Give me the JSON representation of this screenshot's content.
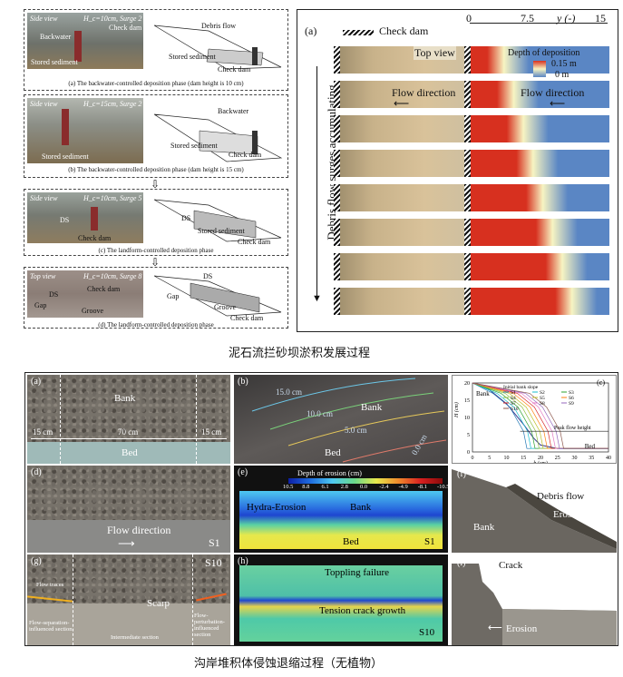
{
  "top_figure": {
    "left_panels": [
      {
        "id": "a",
        "side_view": "Side view",
        "params": "H_c=10cm, Surge 2",
        "labels": [
          "Backwater",
          "Check dam",
          "Stored sediment"
        ],
        "diagram_labels": [
          "Debris flow",
          "Stored sediment",
          "Check dam"
        ],
        "caption": "(a) The backwater-controlled deposition phase (dam height is 10 cm)"
      },
      {
        "id": "b",
        "side_view": "Side view",
        "params": "H_c=15cm, Surge 2",
        "labels": [
          "Stored sediment"
        ],
        "diagram_labels": [
          "Backwater",
          "Stored sediment",
          "Check dam"
        ],
        "caption": "(b) The backwater-controlled deposition phase (dam height is 15 cm)"
      },
      {
        "id": "c",
        "side_view": "Side view",
        "params": "H_c=10cm, Surge 5",
        "labels": [
          "DS",
          "Check dam"
        ],
        "diagram_labels": [
          "DS",
          "Stored sediment",
          "Check dam"
        ],
        "caption": "(c) The landform-controlled deposition phase"
      },
      {
        "id": "d",
        "side_view": "Top view",
        "params": "H_c=10cm, Surge 8",
        "labels": [
          "DS",
          "Gap",
          "Groove",
          "Check dam"
        ],
        "diagram_labels": [
          "DS",
          "Gap",
          "Groove",
          "Check dam"
        ],
        "caption": "(d) The landform-controlled deposition phase"
      }
    ],
    "right_panel": {
      "label": "(a)",
      "legend_check_dam": "Check dam",
      "axis_ticks": [
        "0",
        "7.5",
        "15"
      ],
      "axis_label": "y (-)",
      "top_view": "Top view",
      "depth_title": "Depth of deposition",
      "depth_max": "0.15 m",
      "depth_min": "0 m",
      "flow_direction": "Flow direction",
      "side_label": "Debris flow surges accumulating",
      "colors": {
        "high": "#d7301f",
        "mid": "#f7f4c2",
        "low": "#5a86c4"
      }
    },
    "chinese_caption": "泥石流拦砂坝淤积发展过程"
  },
  "bottom_figure": {
    "a": {
      "label": "(a)",
      "bank": "Bank",
      "bed": "Bed",
      "dims": [
        "15 cm",
        "70 cm",
        "15 cm"
      ]
    },
    "b": {
      "label": "(b)",
      "bank": "Bank",
      "bed": "Bed",
      "contours": [
        "15.0 cm",
        "10.0 cm",
        "5.0 cm",
        "0.0 cm"
      ]
    },
    "c": {
      "label": "(c)",
      "bank": "Bank",
      "bed": "Bed",
      "legend_initial": "Initial bank slope",
      "legend_series": [
        "S1",
        "S2",
        "S3",
        "S4",
        "S5",
        "S6",
        "S7",
        "S8",
        "S9",
        "S10"
      ],
      "peak": "Peak flow height",
      "xlabel": "b (cm)",
      "ylabel": "H (cm)",
      "xticks": [
        "0",
        "5",
        "10",
        "15",
        "20",
        "25",
        "30",
        "35",
        "40"
      ],
      "yticks": [
        "0",
        "5",
        "10",
        "15",
        "20"
      ]
    },
    "d": {
      "label": "(d)",
      "flow": "Flow direction",
      "surge": "S1"
    },
    "e": {
      "label": "(e)",
      "title": "Depth of erosion (cm)",
      "ticks": [
        "10.5",
        "8.8",
        "6.1",
        "2.8",
        "0.0",
        "-2.4",
        "-4.9",
        "-8.1",
        "-10.5"
      ],
      "hydra": "Hydra-Erosion",
      "bank": "Bank",
      "bed": "Bed",
      "surge": "S1"
    },
    "f": {
      "label": "(f)",
      "debris": "Debris flow",
      "erosion": "Erosion",
      "bank": "Bank"
    },
    "g": {
      "label": "(g)",
      "surge": "S10",
      "flow_traces": "Flow traces",
      "scarp": "Scarp",
      "sec1": "Flow-separation-influenced section",
      "sec2": "Intermediate section",
      "sec3": "Flow-perturbation-influenced section"
    },
    "h": {
      "label": "(h)",
      "toppling": "Toppling failure",
      "tension": "Tension crack growth",
      "surge": "S10"
    },
    "i": {
      "label": "(i)",
      "crack": "Crack",
      "erosion": "Erosion"
    },
    "chinese_caption": "沟岸堆积体侵蚀退缩过程（无植物）"
  }
}
